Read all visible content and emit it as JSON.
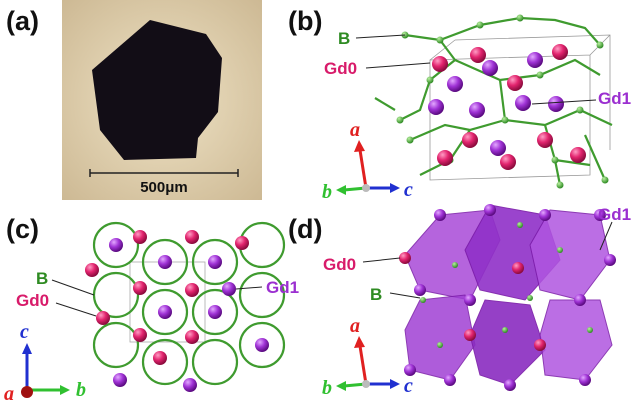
{
  "panels": [
    {
      "label": "(a)",
      "scale_bar": "500μm"
    },
    {
      "label": "(b)",
      "atoms": [
        "B",
        "Gd0",
        "Gd1"
      ],
      "axes": [
        "a",
        "b",
        "c"
      ]
    },
    {
      "label": "(c)",
      "atoms": [
        "B",
        "Gd0",
        "Gd1"
      ],
      "axes": [
        "c",
        "a",
        "b"
      ]
    },
    {
      "label": "(d)",
      "atoms": [
        "Gd0",
        "B",
        "Gd1"
      ],
      "axes": [
        "a",
        "b",
        "c"
      ]
    }
  ]
}
